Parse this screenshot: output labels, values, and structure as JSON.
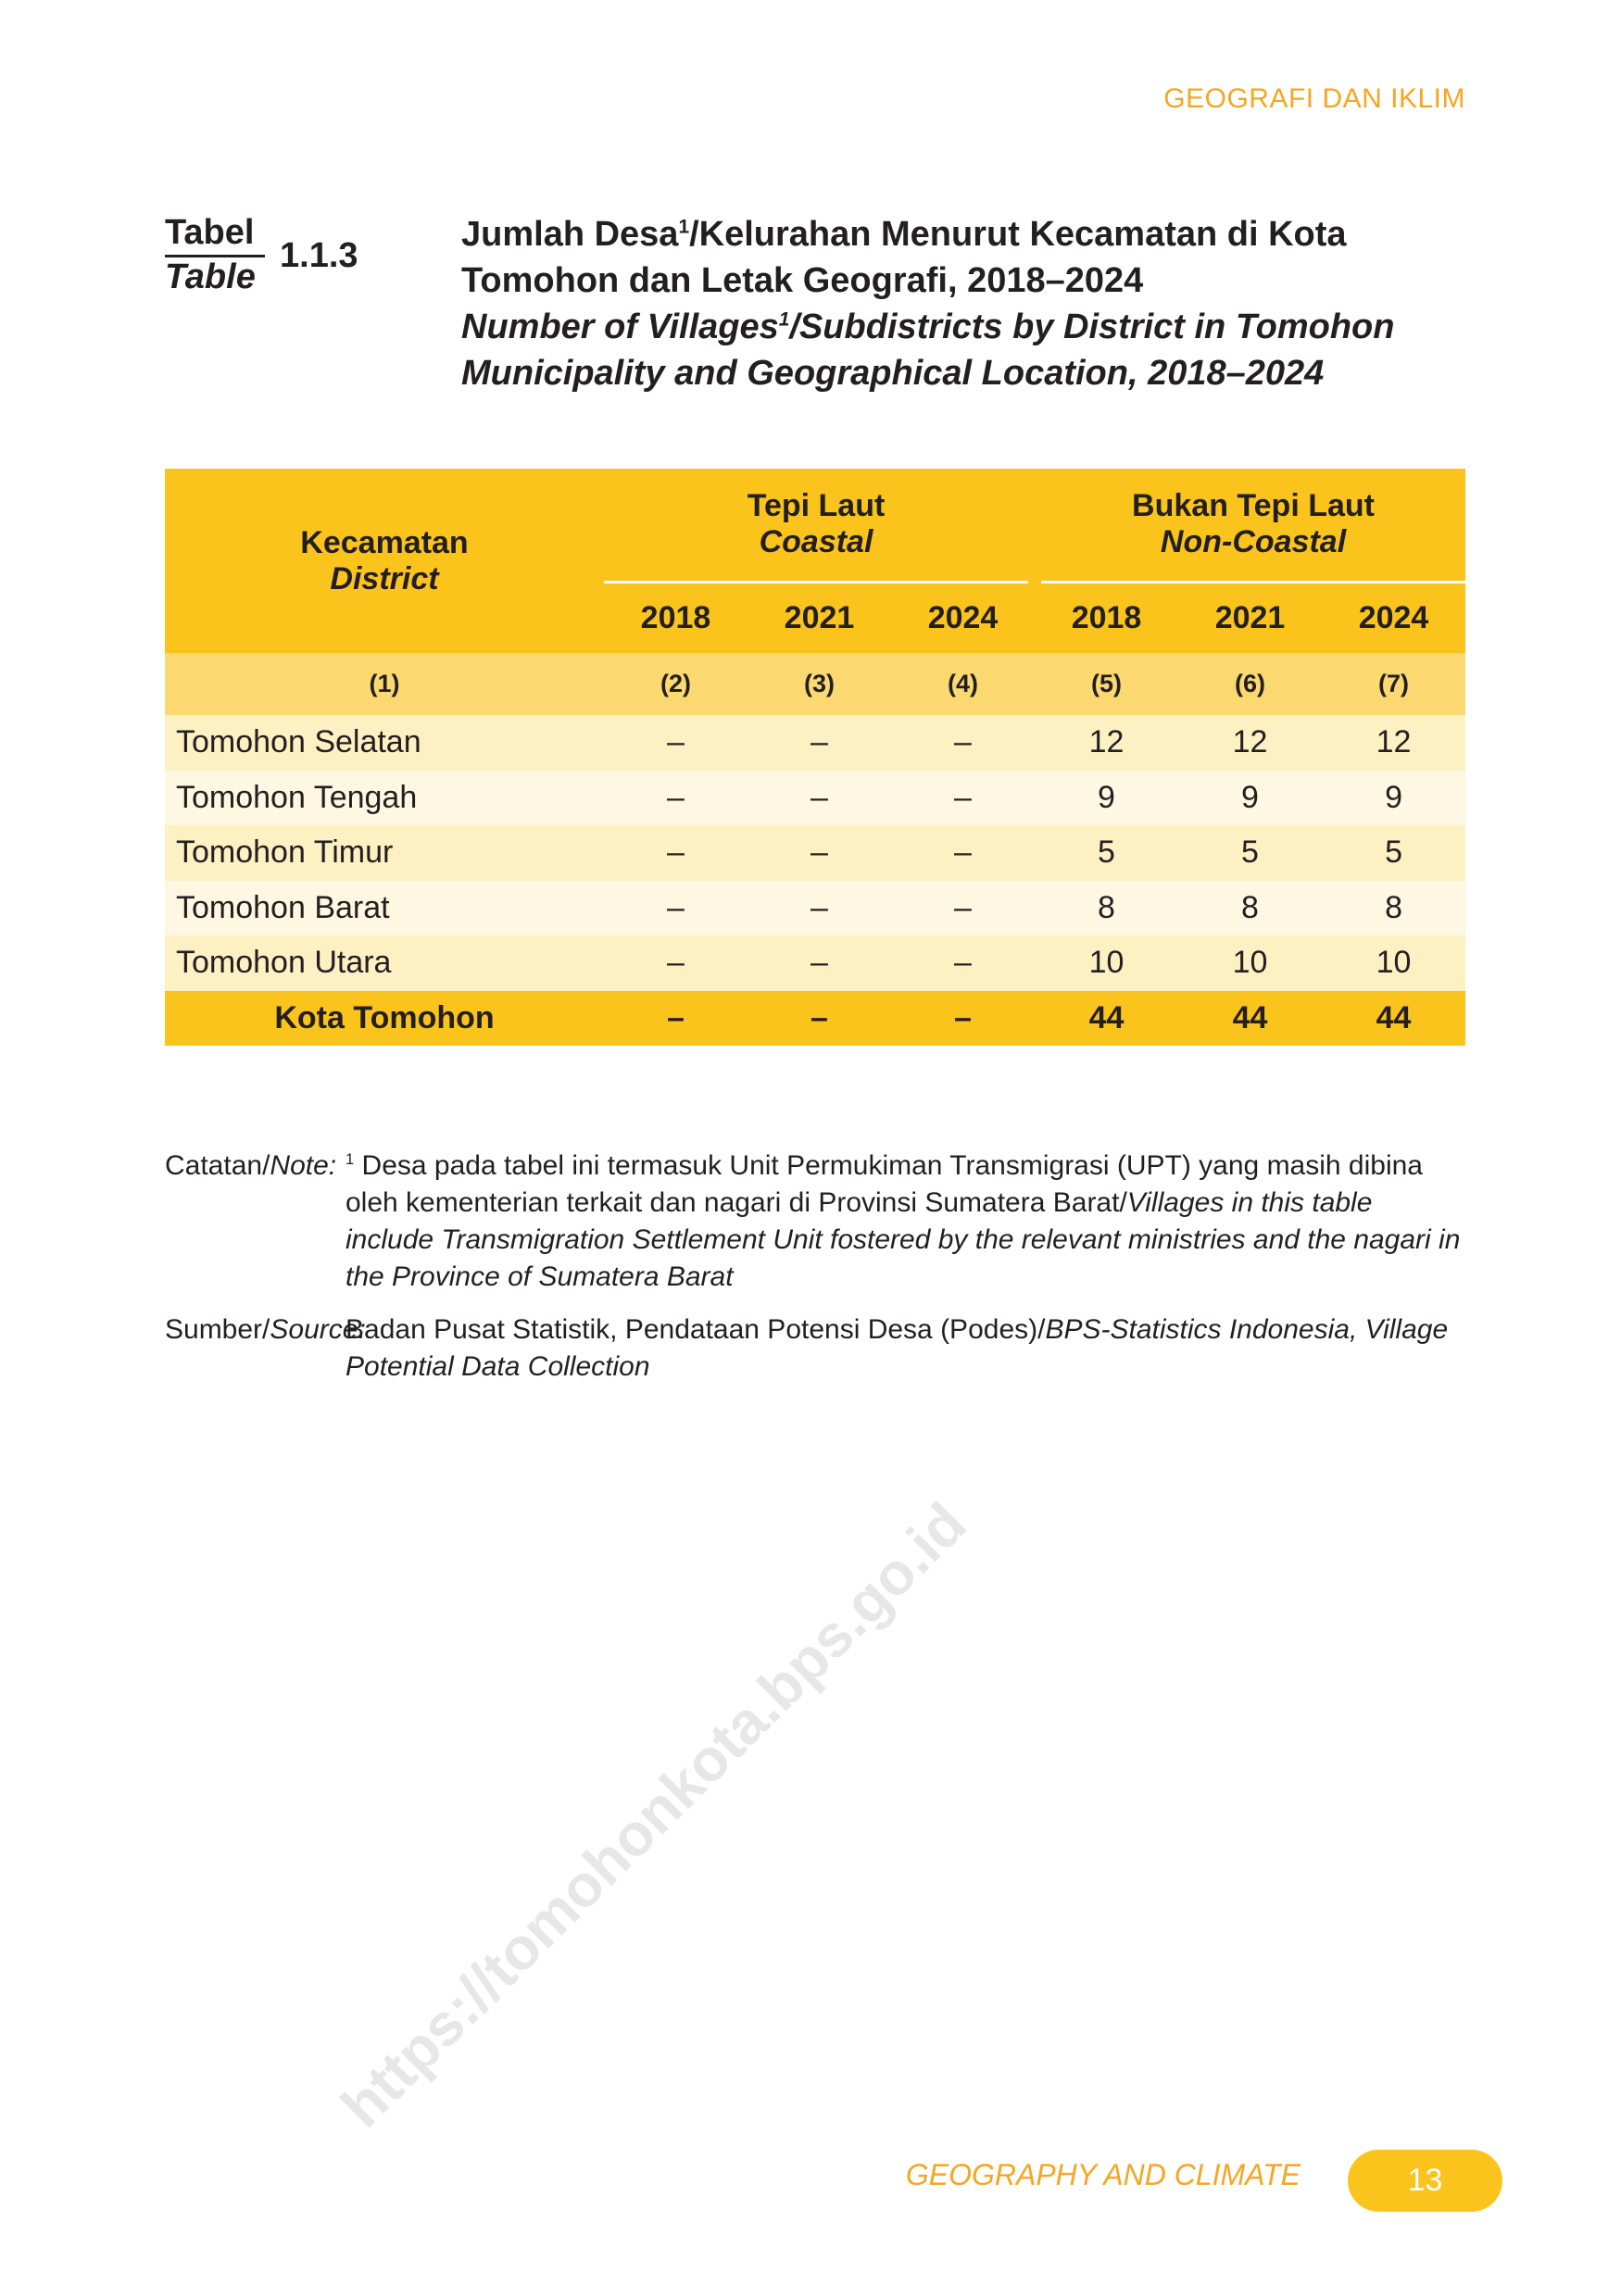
{
  "header": {
    "chapter": "GEOGRAFI DAN IKLIM"
  },
  "table_label": {
    "id_word": "Tabel",
    "en_word": "Table",
    "number": "1.1.3"
  },
  "title": {
    "id_line1_a": "Jumlah Desa",
    "id_line1_sup": "1",
    "id_line1_b": "/Kelurahan Menurut Kecamatan di Kota",
    "id_line2": "Tomohon dan Letak Geografi, 2018–2024",
    "en_line1_a": "Number of Villages",
    "en_line1_sup": "1",
    "en_line1_b": "/Subdistricts by District in Tomohon",
    "en_line2": "Municipality and Geographical Location, 2018–2024"
  },
  "table": {
    "col_district_id": "Kecamatan",
    "col_district_en": "District",
    "group1_id": "Tepi Laut",
    "group1_en": "Coastal",
    "group2_id": "Bukan Tepi Laut",
    "group2_en": "Non-Coastal",
    "years": [
      "2018",
      "2021",
      "2024",
      "2018",
      "2021",
      "2024"
    ],
    "col_numbers": [
      "(1)",
      "(2)",
      "(3)",
      "(4)",
      "(5)",
      "(6)",
      "(7)"
    ],
    "rows": [
      {
        "name": "Tomohon Selatan",
        "values": [
          "–",
          "–",
          "–",
          "12",
          "12",
          "12"
        ]
      },
      {
        "name": "Tomohon Tengah",
        "values": [
          "–",
          "–",
          "–",
          "9",
          "9",
          "9"
        ]
      },
      {
        "name": "Tomohon Timur",
        "values": [
          "–",
          "–",
          "–",
          "5",
          "5",
          "5"
        ]
      },
      {
        "name": "Tomohon Barat",
        "values": [
          "–",
          "–",
          "–",
          "8",
          "8",
          "8"
        ]
      },
      {
        "name": "Tomohon Utara",
        "values": [
          "–",
          "–",
          "–",
          "10",
          "10",
          "10"
        ]
      }
    ],
    "total": {
      "name": "Kota Tomohon",
      "values": [
        "–",
        "–",
        "–",
        "44",
        "44",
        "44"
      ]
    }
  },
  "notes": {
    "note_label_id": "Catatan/",
    "note_label_en": "Note:",
    "note_sup": "1",
    "note_line1": "Desa pada tabel ini termasuk Unit Permukiman Transmigrasi (UPT) yang masih dibina oleh kementerian terkait dan",
    "note_line2_id": "nagari di Provinsi Sumatera Barat/",
    "note_line2_en": "Villages in this table include Transmigration Settlement Unit fostered by the relevant",
    "note_line3_en": "ministries and the nagari in the Province of Sumatera Barat",
    "source_label_id": "Sumber/",
    "source_label_en": "Source:",
    "source_id": "Badan Pusat Statistik, Pendataan Potensi Desa (Podes)/",
    "source_en": "BPS-Statistics Indonesia, Village Potential Data Collection"
  },
  "watermark": "https://tomohonkota.bps.go.id",
  "footer": {
    "chapter": "GEOGRAPHY AND CLIMATE",
    "page": "13"
  },
  "colors": {
    "accent": "#fbc41c",
    "orange_text": "#f5a623"
  }
}
